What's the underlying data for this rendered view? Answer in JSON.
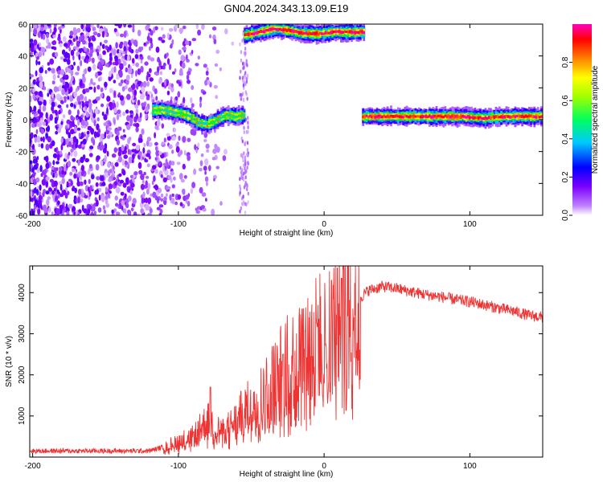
{
  "title": "GN04.2024.343.13.09.E19",
  "chart_data": [
    {
      "type": "heatmap",
      "title": "GN04.2024.343.13.09.E19",
      "xlabel": "Height of straight line (km)",
      "ylabel": "Frequency (Hz)",
      "xlim": [
        -202,
        150
      ],
      "ylim": [
        -60,
        60
      ],
      "x_ticks": [
        -200,
        -100,
        0,
        100
      ],
      "y_ticks": [
        -60,
        -40,
        -20,
        0,
        20,
        40,
        60
      ],
      "x_tick_labels": [
        "-200",
        "-100",
        "0",
        "100"
      ],
      "y_tick_labels": [
        "-60",
        "-40",
        "-20",
        "0",
        "20",
        "40",
        "60"
      ],
      "colorbar": {
        "label": "Normalized spectral amplitude",
        "range": [
          0,
          1
        ],
        "ticks": [
          0,
          0.2,
          0.4,
          0.6,
          0.8
        ],
        "tick_labels": [
          "0.0",
          "0.2",
          "0.4",
          "0.6",
          "0.8"
        ],
        "colors": [
          "#ffffff",
          "#7b00ff",
          "#0000ff",
          "#00c8ff",
          "#00ff00",
          "#ffff00",
          "#ff8000",
          "#ff0000",
          "#ff00c0"
        ]
      },
      "bands": [
        {
          "x_start": -118,
          "x_end": -55,
          "freq": [
            6,
            6,
            5,
            4,
            2,
            -2,
            -3,
            0,
            3,
            2,
            3
          ],
          "amplitude": 0.45
        },
        {
          "x_start": -55,
          "x_end": 27,
          "freq": [
            53,
            55,
            57,
            56,
            54,
            54,
            55,
            55,
            55
          ],
          "amplitude": 0.95
        },
        {
          "x_start": 26,
          "x_end": 150,
          "freq": [
            2,
            2,
            2,
            2,
            2,
            2,
            1,
            2,
            2,
            2
          ],
          "amplitude": 0.9
        }
      ],
      "noise_region": {
        "x_start": -202,
        "x_end": -55,
        "density": "decreasing"
      }
    },
    {
      "type": "line",
      "xlabel": "Height of straight line (km)",
      "ylabel": "SNR (10 * v/v)",
      "xlim": [
        -202,
        150
      ],
      "ylim": [
        0,
        4650
      ],
      "x_ticks": [
        -200,
        -100,
        0,
        100
      ],
      "y_ticks": [
        1000,
        2000,
        3000,
        4000
      ],
      "x_tick_labels": [
        "-200",
        "-100",
        "0",
        "100"
      ],
      "y_tick_labels": [
        "1000",
        "2000",
        "3000",
        "4000"
      ],
      "color": "#ee3333",
      "envelope": [
        [
          -202,
          150
        ],
        [
          -150,
          150
        ],
        [
          -120,
          150
        ],
        [
          -110,
          250
        ],
        [
          -100,
          400
        ],
        [
          -90,
          500
        ],
        [
          -80,
          900
        ],
        [
          -70,
          600
        ],
        [
          -60,
          900
        ],
        [
          -50,
          1300
        ],
        [
          -40,
          1600
        ],
        [
          -30,
          2100
        ],
        [
          -20,
          2400
        ],
        [
          -10,
          2800
        ],
        [
          0,
          3000
        ],
        [
          10,
          3300
        ],
        [
          20,
          3700
        ],
        [
          30,
          4050
        ],
        [
          40,
          4150
        ],
        [
          50,
          4100
        ],
        [
          60,
          4020
        ],
        [
          70,
          3950
        ],
        [
          80,
          3900
        ],
        [
          90,
          3830
        ],
        [
          100,
          3780
        ],
        [
          110,
          3700
        ],
        [
          120,
          3620
        ],
        [
          130,
          3550
        ],
        [
          140,
          3450
        ],
        [
          150,
          3400
        ]
      ],
      "spikes": [
        [
          -78,
          1700
        ],
        [
          -57,
          1600
        ],
        [
          -40,
          1750
        ],
        [
          -28,
          2500
        ],
        [
          -15,
          3600
        ],
        [
          -5,
          3250
        ],
        [
          5,
          4300
        ],
        [
          9,
          4600
        ],
        [
          12,
          4350
        ]
      ]
    }
  ]
}
